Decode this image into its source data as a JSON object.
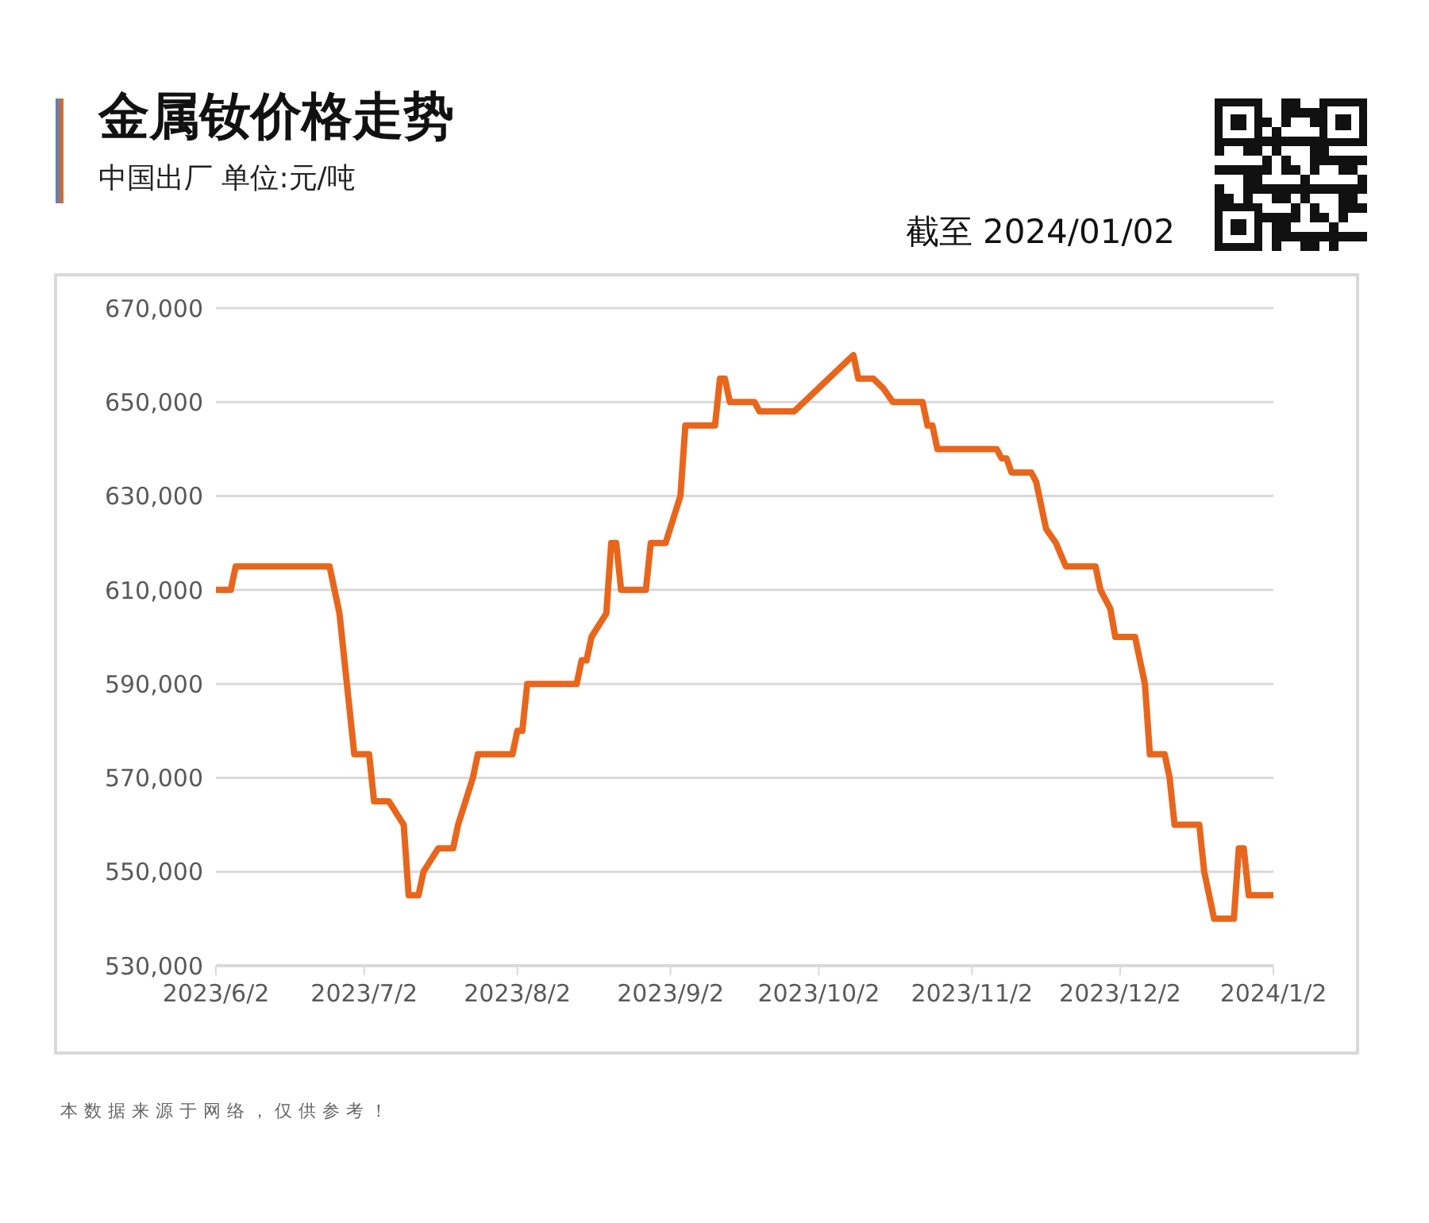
{
  "chart_data": {
    "type": "line",
    "title": "金属钕价格走势",
    "subtitle": "中国出厂 单位:元/吨",
    "annotations": [
      "截至 2024/01/02",
      "本数据来源于网络，仅供参考！"
    ],
    "x": [
      "2023-06-02",
      "2023-06-05",
      "2023-06-06",
      "2023-06-25",
      "2023-06-27",
      "2023-06-30",
      "2023-07-03",
      "2023-07-04",
      "2023-07-07",
      "2023-07-10",
      "2023-07-11",
      "2023-07-13",
      "2023-07-14",
      "2023-07-17",
      "2023-07-20",
      "2023-07-21",
      "2023-07-24",
      "2023-07-25",
      "2023-08-01",
      "2023-08-02",
      "2023-08-03",
      "2023-08-04",
      "2023-08-14",
      "2023-08-15",
      "2023-08-16",
      "2023-08-17",
      "2023-08-20",
      "2023-08-21",
      "2023-08-22",
      "2023-08-23",
      "2023-08-28",
      "2023-08-29",
      "2023-09-01",
      "2023-09-04",
      "2023-09-05",
      "2023-09-11",
      "2023-09-12",
      "2023-09-13",
      "2023-09-14",
      "2023-09-19",
      "2023-09-20",
      "2023-09-27",
      "2023-10-09",
      "2023-10-10",
      "2023-10-13",
      "2023-10-15",
      "2023-10-17",
      "2023-10-23",
      "2023-10-24",
      "2023-10-25",
      "2023-10-26",
      "2023-11-07",
      "2023-11-08",
      "2023-11-09",
      "2023-11-10",
      "2023-11-14",
      "2023-11-15",
      "2023-11-17",
      "2023-11-19",
      "2023-11-21",
      "2023-11-27",
      "2023-11-28",
      "2023-11-30",
      "2023-12-01",
      "2023-12-05",
      "2023-12-07",
      "2023-12-08",
      "2023-12-11",
      "2023-12-12",
      "2023-12-13",
      "2023-12-18",
      "2023-12-19",
      "2023-12-21",
      "2023-12-25",
      "2023-12-26",
      "2023-12-27",
      "2023-12-28",
      "2024-01-02"
    ],
    "series": [
      {
        "color": "#e8661c",
        "values": [
          610000,
          610000,
          615000,
          615000,
          605000,
          575000,
          575000,
          565000,
          565000,
          560000,
          545000,
          545000,
          550000,
          555000,
          555000,
          560000,
          570000,
          575000,
          575000,
          580000,
          580000,
          590000,
          590000,
          595000,
          595000,
          600000,
          605000,
          620000,
          620000,
          610000,
          610000,
          620000,
          620000,
          630000,
          645000,
          645000,
          655000,
          655000,
          650000,
          650000,
          648000,
          648000,
          660000,
          655000,
          655000,
          653000,
          650000,
          650000,
          645000,
          645000,
          640000,
          640000,
          638000,
          638000,
          635000,
          635000,
          633000,
          623000,
          620000,
          615000,
          615000,
          610000,
          606000,
          600000,
          600000,
          590000,
          575000,
          575000,
          570000,
          560000,
          560000,
          550000,
          540000,
          540000,
          555000,
          555000,
          545000,
          545000
        ]
      }
    ],
    "xlim": [
      "2023-06-02",
      "2024-01-02"
    ],
    "xticks": [
      {
        "value": "2023-06-02",
        "label": "2023/6/2"
      },
      {
        "value": "2023-07-02",
        "label": "2023/7/2"
      },
      {
        "value": "2023-08-02",
        "label": "2023/8/2"
      },
      {
        "value": "2023-09-02",
        "label": "2023/9/2"
      },
      {
        "value": "2023-10-02",
        "label": "2023/10/2"
      },
      {
        "value": "2023-11-02",
        "label": "2023/11/2"
      },
      {
        "value": "2023-12-02",
        "label": "2023/12/2"
      },
      {
        "value": "2024-01-02",
        "label": "2024/1/2"
      }
    ],
    "ylim": [
      530000,
      670000
    ],
    "yticks": [
      {
        "value": 530000,
        "label": "530,000"
      },
      {
        "value": 550000,
        "label": "550,000"
      },
      {
        "value": 570000,
        "label": "570,000"
      },
      {
        "value": 590000,
        "label": "590,000"
      },
      {
        "value": 610000,
        "label": "610,000"
      },
      {
        "value": 630000,
        "label": "630,000"
      },
      {
        "value": 650000,
        "label": "650,000"
      },
      {
        "value": 670000,
        "label": "670,000"
      }
    ],
    "grid": "y",
    "legend": false,
    "marker": "none",
    "line_style": "solid"
  }
}
